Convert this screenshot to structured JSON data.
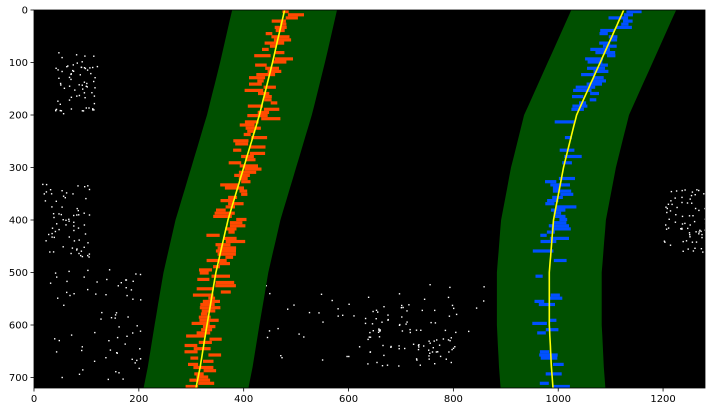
{
  "chart_data": {
    "type": "image",
    "title": "",
    "xlabel": "",
    "ylabel": "",
    "xlim": [
      0,
      1280
    ],
    "ylim": [
      720,
      0
    ],
    "x_ticks": [
      0,
      200,
      400,
      600,
      800,
      1000,
      1200
    ],
    "y_ticks": [
      0,
      100,
      200,
      300,
      400,
      500,
      600,
      700
    ],
    "grid": false,
    "legend": "none",
    "series": [
      {
        "role": "left-lane-fit",
        "color": "#ffff00",
        "x": [
          478,
          455,
          430,
          400,
          370,
          347,
          330,
          317,
          309
        ],
        "y": [
          0,
          100,
          200,
          300,
          400,
          500,
          600,
          680,
          720
        ]
      },
      {
        "role": "right-lane-fit",
        "color": "#ffff00",
        "x": [
          1125,
          1080,
          1035,
          1010,
          991,
          983,
          983,
          987,
          990
        ],
        "y": [
          0,
          100,
          200,
          300,
          400,
          500,
          600,
          680,
          720
        ]
      }
    ],
    "search_window_half_width": 100,
    "colors": {
      "window": "#005000",
      "left_pixels": "#ff4a00",
      "right_pixels": "#0050ff",
      "fit_line": "#ffff00",
      "edge_pixels": "#ffffff",
      "background": "#000000"
    }
  }
}
